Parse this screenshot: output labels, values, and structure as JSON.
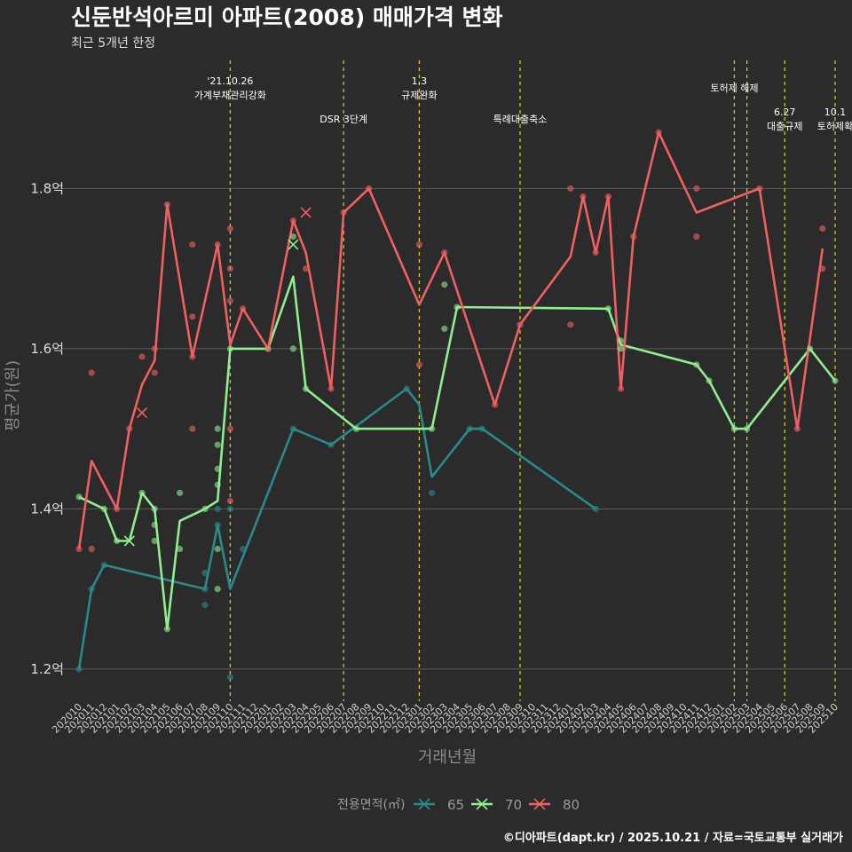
{
  "chart_data": {
    "type": "line",
    "title": "신둔반석아르미 아파트(2008) 매매가격 변화",
    "subtitle": "최근 5개년 한정",
    "xlabel": "거래년월",
    "ylabel": "평균가(원)",
    "caption": "©디아파트(dapt.kr) / 2025.10.21 / 자료=국토교통부 실거래가",
    "legend_title": "전용면적(㎡)",
    "ylim": [
      1.16,
      1.96
    ],
    "y_ticks": [
      {
        "value": 1.2,
        "label": "1.2억"
      },
      {
        "value": 1.4,
        "label": "1.4억"
      },
      {
        "value": 1.6,
        "label": "1.6억"
      },
      {
        "value": 1.8,
        "label": "1.8억"
      }
    ],
    "x_categories": [
      "202010",
      "202011",
      "202012",
      "202101",
      "202102",
      "202103",
      "202104",
      "202105",
      "202106",
      "202107",
      "202108",
      "202109",
      "202110",
      "202111",
      "202112",
      "202201",
      "202202",
      "202203",
      "202204",
      "202205",
      "202206",
      "202207",
      "202208",
      "202209",
      "202210",
      "202211",
      "202212",
      "202301",
      "202302",
      "202303",
      "202304",
      "202305",
      "202306",
      "202307",
      "202308",
      "202309",
      "202310",
      "202311",
      "202312",
      "202401",
      "202402",
      "202403",
      "202404",
      "202405",
      "202406",
      "202407",
      "202408",
      "202409",
      "202410",
      "202411",
      "202412",
      "202501",
      "202502",
      "202503",
      "202504",
      "202505",
      "202506",
      "202507",
      "202508",
      "202509",
      "202510"
    ],
    "x_tick_labels": [
      "202010",
      "202011",
      "202012",
      "202101",
      "202102",
      "202103",
      "202104",
      "202105",
      "202106",
      "202107",
      "202108",
      "202109",
      "202110",
      "202111",
      "202112",
      "202201",
      "202202",
      "202203",
      "202204",
      "202205",
      "202206",
      "202207",
      "202208",
      "202209",
      "202210",
      "202211",
      "202212",
      "202301",
      "202302",
      "202303",
      "202304",
      "202305",
      "202306",
      "202307",
      "202308",
      "202309",
      "202310",
      "202311",
      "202312",
      "202401",
      "202402",
      "202403",
      "202404",
      "202405",
      "202406",
      "202407",
      "202408",
      "202409",
      "202410",
      "202411",
      "202412",
      "202501",
      "202502",
      "202503",
      "202504",
      "202505",
      "202506",
      "202507",
      "202508",
      "202509",
      "202510"
    ],
    "events": [
      {
        "x": 12,
        "label": "'21.10.26",
        "label2": "가계부채관리강화",
        "level": 0
      },
      {
        "x": 21,
        "label": "DSR 3단계",
        "label2": "",
        "level": 2
      },
      {
        "x": 27,
        "label": "1.3",
        "label2": "규제완화",
        "level": 0
      },
      {
        "x": 35,
        "label": "특례대출축소",
        "label2": "",
        "level": 2
      },
      {
        "x": 52,
        "label": "토허제 해제",
        "label2": "",
        "level": 1
      },
      {
        "x": 53,
        "label": "",
        "label2": "",
        "level": 1
      },
      {
        "x": 56,
        "label": "6.27",
        "label2": "대출규제",
        "level": 3
      },
      {
        "x": 60,
        "label": "10.1",
        "label2": "토허제확",
        "level": 3
      }
    ],
    "series": [
      {
        "name": "65",
        "color": "#2a8a8a",
        "line": [
          [
            0,
            1.2
          ],
          [
            1,
            1.3
          ],
          [
            2,
            1.33
          ],
          [
            10,
            1.3
          ],
          [
            11,
            1.38
          ],
          [
            12,
            1.3
          ],
          [
            17,
            1.5
          ],
          [
            20,
            1.48
          ],
          [
            26,
            1.55
          ],
          [
            27,
            1.53
          ],
          [
            28,
            1.44
          ],
          [
            31,
            1.5
          ],
          [
            32,
            1.5
          ],
          [
            41,
            1.4
          ]
        ],
        "points": [
          [
            0,
            1.2
          ],
          [
            1,
            1.3
          ],
          [
            2,
            1.33
          ],
          [
            10,
            1.3
          ],
          [
            10,
            1.32
          ],
          [
            10,
            1.28
          ],
          [
            11,
            1.4
          ],
          [
            11,
            1.38
          ],
          [
            12,
            1.4
          ],
          [
            12,
            1.19
          ],
          [
            13,
            1.35
          ],
          [
            17,
            1.5
          ],
          [
            20,
            1.48
          ],
          [
            26,
            1.55
          ],
          [
            28,
            1.42
          ],
          [
            31,
            1.5
          ],
          [
            32,
            1.5
          ],
          [
            41,
            1.4
          ]
        ],
        "crosses": []
      },
      {
        "name": "70",
        "color": "#90ee90",
        "line": [
          [
            0,
            1.415
          ],
          [
            2,
            1.4
          ],
          [
            3,
            1.36
          ],
          [
            4,
            1.36
          ],
          [
            5,
            1.42
          ],
          [
            6,
            1.4
          ],
          [
            7,
            1.25
          ],
          [
            8,
            1.385
          ],
          [
            10,
            1.4
          ],
          [
            11,
            1.41
          ],
          [
            12,
            1.6
          ],
          [
            15,
            1.6
          ],
          [
            17,
            1.69
          ],
          [
            18,
            1.55
          ],
          [
            22,
            1.5
          ],
          [
            28,
            1.5
          ],
          [
            30,
            1.652
          ],
          [
            42,
            1.65
          ],
          [
            43,
            1.605
          ],
          [
            49,
            1.58
          ],
          [
            50,
            1.56
          ],
          [
            52,
            1.5
          ],
          [
            53,
            1.5
          ],
          [
            58,
            1.6
          ],
          [
            60,
            1.56
          ]
        ],
        "points": [
          [
            0,
            1.415
          ],
          [
            2,
            1.4
          ],
          [
            3,
            1.36
          ],
          [
            5,
            1.42
          ],
          [
            6,
            1.4
          ],
          [
            6,
            1.38
          ],
          [
            6,
            1.36
          ],
          [
            7,
            1.25
          ],
          [
            8,
            1.42
          ],
          [
            8,
            1.35
          ],
          [
            10,
            1.4
          ],
          [
            11,
            1.5
          ],
          [
            11,
            1.48
          ],
          [
            11,
            1.45
          ],
          [
            11,
            1.43
          ],
          [
            11,
            1.35
          ],
          [
            11,
            1.3
          ],
          [
            12,
            1.6
          ],
          [
            15,
            1.6
          ],
          [
            17,
            1.6
          ],
          [
            17,
            1.74
          ],
          [
            18,
            1.55
          ],
          [
            22,
            1.5
          ],
          [
            28,
            1.5
          ],
          [
            29,
            1.68
          ],
          [
            29,
            1.625
          ],
          [
            30,
            1.652
          ],
          [
            42,
            1.65
          ],
          [
            43,
            1.6
          ],
          [
            43,
            1.61
          ],
          [
            49,
            1.58
          ],
          [
            50,
            1.56
          ],
          [
            52,
            1.5
          ],
          [
            53,
            1.5
          ],
          [
            58,
            1.6
          ],
          [
            60,
            1.56
          ]
        ],
        "crosses": [
          [
            4,
            1.36
          ],
          [
            17,
            1.73
          ]
        ]
      },
      {
        "name": "80",
        "color": "#f06060",
        "line": [
          [
            0,
            1.35
          ],
          [
            1,
            1.46
          ],
          [
            3,
            1.4
          ],
          [
            4,
            1.5
          ],
          [
            5,
            1.555
          ],
          [
            6,
            1.585
          ],
          [
            7,
            1.78
          ],
          [
            9,
            1.59
          ],
          [
            11,
            1.73
          ],
          [
            12,
            1.605
          ],
          [
            13,
            1.65
          ],
          [
            15,
            1.6
          ],
          [
            17,
            1.76
          ],
          [
            18,
            1.72
          ],
          [
            20,
            1.55
          ],
          [
            21,
            1.77
          ],
          [
            23,
            1.8
          ],
          [
            27,
            1.655
          ],
          [
            29,
            1.72
          ],
          [
            33,
            1.53
          ],
          [
            35,
            1.63
          ],
          [
            39,
            1.715
          ],
          [
            40,
            1.79
          ],
          [
            41,
            1.72
          ],
          [
            42,
            1.79
          ],
          [
            43,
            1.55
          ],
          [
            44,
            1.74
          ],
          [
            46,
            1.87
          ],
          [
            49,
            1.77
          ],
          [
            54,
            1.8
          ],
          [
            57,
            1.5
          ],
          [
            59,
            1.725
          ]
        ],
        "points": [
          [
            0,
            1.35
          ],
          [
            1,
            1.35
          ],
          [
            1,
            1.57
          ],
          [
            3,
            1.4
          ],
          [
            4,
            1.5
          ],
          [
            5,
            1.59
          ],
          [
            6,
            1.57
          ],
          [
            6,
            1.6
          ],
          [
            7,
            1.78
          ],
          [
            9,
            1.73
          ],
          [
            9,
            1.64
          ],
          [
            9,
            1.59
          ],
          [
            9,
            1.5
          ],
          [
            11,
            1.73
          ],
          [
            12,
            1.75
          ],
          [
            12,
            1.7
          ],
          [
            12,
            1.66
          ],
          [
            12,
            1.5
          ],
          [
            12,
            1.41
          ],
          [
            13,
            1.65
          ],
          [
            15,
            1.6
          ],
          [
            17,
            1.76
          ],
          [
            18,
            1.7
          ],
          [
            20,
            1.55
          ],
          [
            21,
            1.77
          ],
          [
            23,
            1.8
          ],
          [
            27,
            1.73
          ],
          [
            27,
            1.58
          ],
          [
            29,
            1.72
          ],
          [
            33,
            1.53
          ],
          [
            35,
            1.63
          ],
          [
            39,
            1.8
          ],
          [
            39,
            1.63
          ],
          [
            40,
            1.79
          ],
          [
            41,
            1.72
          ],
          [
            42,
            1.79
          ],
          [
            43,
            1.55
          ],
          [
            44,
            1.74
          ],
          [
            46,
            1.87
          ],
          [
            49,
            1.8
          ],
          [
            49,
            1.74
          ],
          [
            54,
            1.8
          ],
          [
            57,
            1.5
          ],
          [
            59,
            1.75
          ],
          [
            59,
            1.7
          ]
        ],
        "crosses": [
          [
            5,
            1.52
          ],
          [
            18,
            1.77
          ]
        ]
      }
    ]
  }
}
